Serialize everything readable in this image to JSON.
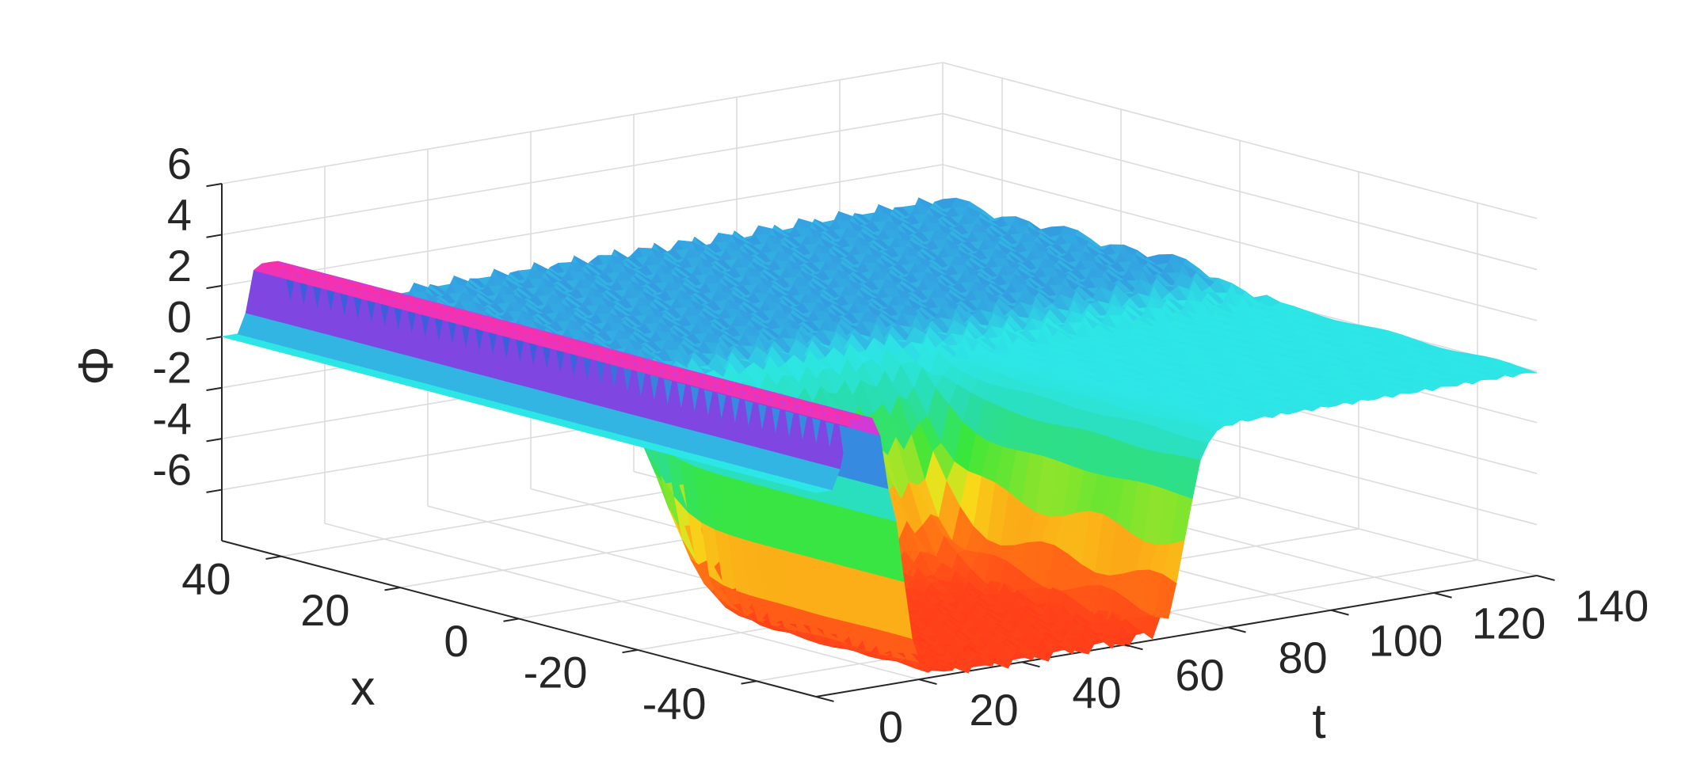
{
  "chart_data": {
    "type": "surface",
    "title": "",
    "xlabel": "t",
    "ylabel": "x",
    "zlabel": "Φ",
    "xlim": [
      0,
      140
    ],
    "ylim": [
      -50,
      50
    ],
    "zlim": [
      -8,
      6
    ],
    "x_ticks": [
      "0",
      "20",
      "40",
      "60",
      "80",
      "100",
      "120",
      "140"
    ],
    "y_ticks": [
      "-40",
      "-20",
      "0",
      "20",
      "40"
    ],
    "z_ticks": [
      "-6",
      "-4",
      "-2",
      "0",
      "2",
      "4",
      "6"
    ],
    "grid": true,
    "colormap": "hsv",
    "surface": {
      "description_values": {
        "baseline_phi": 0,
        "initial_bump": {
          "t_range": [
            0,
            15
          ],
          "x_range": [
            -50,
            50
          ],
          "phi_peak": 2.5,
          "color": "#ff2fa0"
        },
        "upper_branch": {
          "phi": 0.5,
          "t_end": 140,
          "x_band": [
            0,
            30
          ]
        },
        "lower_branch": {
          "phi": -7.5,
          "t_end": 70,
          "x_band": [
            -45,
            -10
          ]
        },
        "oscillation_amplitude": 0.4
      },
      "colors": {
        "baseline": "#2de6e6",
        "low": "#ff3a1a",
        "mid_low": "#f7e21a",
        "mid": "#3ae63a",
        "high": "#2b2bd8",
        "peak": "#ff2fa0"
      }
    }
  }
}
